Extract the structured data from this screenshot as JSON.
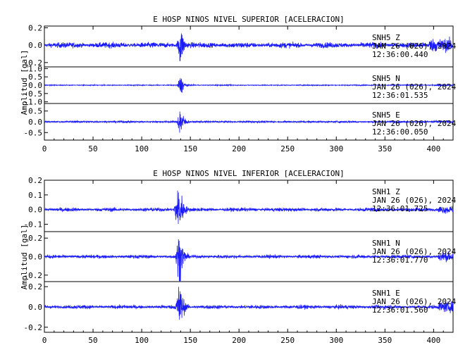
{
  "colors": {
    "trace": "#1a1aff",
    "axes": "#000000",
    "background": "#ffffff"
  },
  "chart_data": [
    {
      "type": "line",
      "title": "E HOSP NINOS NIVEL SUPERIOR [ACELERACION]",
      "xlabel": "",
      "ylabel": "Amplitud [gal]",
      "xlim": [
        0,
        420
      ],
      "x_ticks": [
        "0",
        "50",
        "100",
        "150",
        "200",
        "250",
        "300",
        "350",
        "400"
      ],
      "grid": false,
      "series": [
        {
          "name": "SNH5 Z",
          "station": "SNH5",
          "component": "Z",
          "date": "JAN 26 (026), 2024",
          "time": "12:36:00.440",
          "ylim": [
            -0.25,
            0.22
          ],
          "y_ticks": [
            "0.2",
            "0.0",
            "-0.2"
          ],
          "y_tick_values": [
            0.2,
            0.0,
            -0.2
          ],
          "noise_amplitude": 0.02,
          "event": {
            "onset_s": 136,
            "peak_s": 139.5,
            "peak_amplitude": 0.22
          },
          "late_noise_from_s": 395,
          "late_noise_amplitude": 0.06
        },
        {
          "name": "SNH5 N",
          "station": "SNH5",
          "component": "N",
          "date": "JAN 26 (026), 2024",
          "time": "12:36:01.535",
          "ylim": [
            -1.1,
            1.1
          ],
          "y_ticks": [
            "1.0",
            "0.5",
            "0.0",
            "-0.5",
            "-1.0"
          ],
          "y_tick_values": [
            1.0,
            0.5,
            0.0,
            -0.5,
            -1.0
          ],
          "noise_amplitude": 0.02,
          "event": {
            "onset_s": 136,
            "peak_s": 140,
            "peak_amplitude": 0.5
          },
          "late_noise_from_s": 400,
          "late_noise_amplitude": 0.04
        },
        {
          "name": "SNH5 E",
          "station": "SNH5",
          "component": "E",
          "date": "JAN 26 (026), 2024",
          "time": "12:36:00.050",
          "ylim": [
            -0.85,
            0.85
          ],
          "y_ticks": [
            "0.5",
            "0.0",
            "-0.5"
          ],
          "y_tick_values": [
            0.5,
            0.0,
            -0.5
          ],
          "noise_amplitude": 0.03,
          "event": {
            "onset_s": 136,
            "peak_s": 139.5,
            "peak_amplitude": 0.65
          },
          "late_noise_from_s": 400,
          "late_noise_amplitude": 0.05
        }
      ]
    },
    {
      "type": "line",
      "title": "E HOSP NINOS NIVEL INFERIOR [ACELERACION]",
      "xlabel": "",
      "ylabel": "Amplitud [gal]",
      "xlim": [
        0,
        420
      ],
      "x_ticks": [
        "0",
        "50",
        "100",
        "150",
        "200",
        "250",
        "300",
        "350",
        "400"
      ],
      "grid": false,
      "series": [
        {
          "name": "SNH1 Z",
          "station": "SNH1",
          "component": "Z",
          "date": "JAN 26 (026), 2024",
          "time": "12:36:01.725",
          "ylim": [
            -0.15,
            0.2
          ],
          "y_ticks": [
            "0.2",
            "0.1",
            "0.0",
            "-0.1"
          ],
          "y_tick_values": [
            0.2,
            0.1,
            0.0,
            -0.1
          ],
          "noise_amplitude": 0.008,
          "event": {
            "onset_s": 132,
            "peak_s": 139,
            "peak_amplitude": 0.15
          },
          "late_noise_from_s": 405,
          "late_noise_amplitude": 0.02
        },
        {
          "name": "SNH1 N",
          "station": "SNH1",
          "component": "N",
          "date": "JAN 26 (026), 2024",
          "time": "12:36:01.770",
          "ylim": [
            -0.27,
            0.27
          ],
          "y_ticks": [
            "0.2",
            "0.0",
            "-0.2"
          ],
          "y_tick_values": [
            0.2,
            0.0,
            -0.2
          ],
          "noise_amplitude": 0.012,
          "event": {
            "onset_s": 134,
            "peak_s": 139,
            "peak_amplitude": 0.25
          },
          "late_noise_from_s": 405,
          "late_noise_amplitude": 0.04
        },
        {
          "name": "SNH1 E",
          "station": "SNH1",
          "component": "E",
          "date": "JAN 26 (026), 2024",
          "time": "12:36:01.560",
          "ylim": [
            -0.25,
            0.25
          ],
          "y_ticks": [
            "0.2",
            "0.0",
            "-0.2"
          ],
          "y_tick_values": [
            0.2,
            0.0,
            -0.2
          ],
          "noise_amplitude": 0.012,
          "event": {
            "onset_s": 134,
            "peak_s": 139,
            "peak_amplitude": 0.22
          },
          "late_noise_from_s": 405,
          "late_noise_amplitude": 0.04
        }
      ]
    }
  ]
}
